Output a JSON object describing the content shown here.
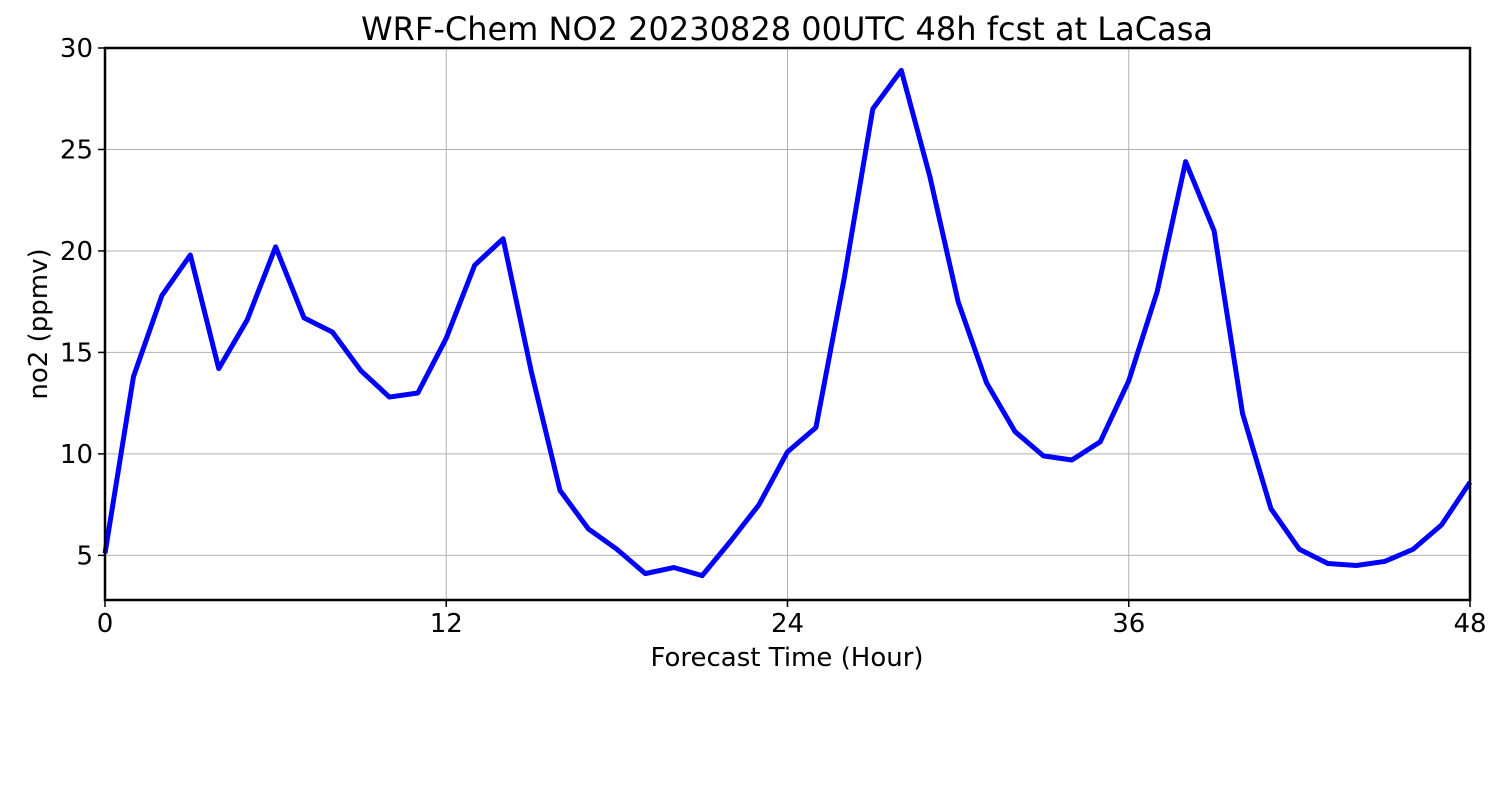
{
  "chart_data": {
    "type": "line",
    "title": "WRF-Chem NO2  20230828 00UTC 48h fcst at LaCasa",
    "xlabel": "Forecast Time (Hour)",
    "ylabel": "no2  (ppmv)",
    "xlim": [
      0,
      48
    ],
    "ylim": [
      2.8,
      30
    ],
    "xticks": [
      0,
      12,
      24,
      36,
      48
    ],
    "yticks": [
      5,
      10,
      15,
      20,
      25,
      30
    ],
    "grid": true,
    "series": [
      {
        "color": "#0000ff",
        "x": [
          0,
          1,
          2,
          3,
          4,
          5,
          6,
          7,
          8,
          9,
          10,
          11,
          12,
          13,
          14,
          15,
          16,
          17,
          18,
          19,
          20,
          21,
          22,
          23,
          24,
          25,
          26,
          27,
          28,
          29,
          30,
          31,
          32,
          33,
          34,
          35,
          36,
          37,
          38,
          39,
          40,
          41,
          42,
          43,
          44,
          45,
          46,
          47,
          48
        ],
        "values": [
          5.1,
          13.8,
          17.8,
          19.8,
          14.2,
          16.6,
          20.2,
          16.7,
          16.0,
          14.1,
          12.8,
          13.0,
          15.7,
          19.3,
          20.6,
          14.0,
          8.2,
          6.3,
          5.3,
          4.1,
          4.4,
          4.0,
          5.7,
          7.5,
          10.1,
          11.3,
          18.7,
          27.0,
          28.9,
          23.7,
          17.5,
          13.5,
          11.1,
          9.9,
          9.7,
          10.6,
          13.6,
          18.0,
          24.4,
          21.0,
          12.0,
          7.3,
          5.3,
          4.6,
          4.5,
          4.7,
          5.3,
          6.5,
          8.6
        ]
      }
    ]
  }
}
